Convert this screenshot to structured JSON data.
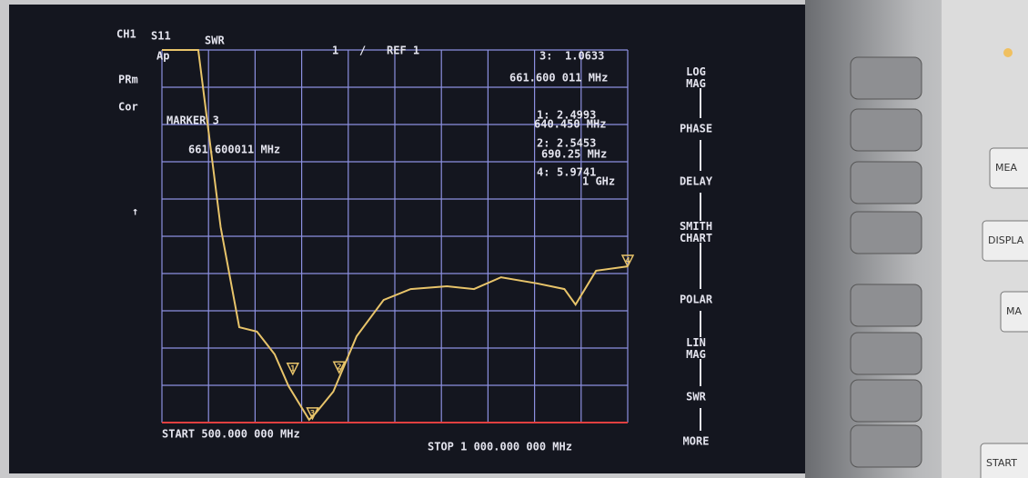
{
  "chart_data": {
    "type": "line",
    "channel": "CH1",
    "parameter": "S11",
    "format": "SWR",
    "scale_ref": [
      "1",
      "/",
      "REF 1"
    ],
    "status": [
      "Ap",
      "PRm",
      "Cor",
      "↑"
    ],
    "xlim": [
      500,
      1000
    ],
    "ylim": [
      1,
      13
    ],
    "x": [
      500,
      535,
      539,
      563,
      583,
      602,
      621,
      636,
      658,
      665,
      684,
      709,
      738,
      767,
      806,
      835,
      864,
      903,
      932,
      944,
      966,
      1000
    ],
    "series": [
      {
        "color": "#e8c46a",
        "values": [
          13,
          13,
          13,
          7.3,
          4.07,
          3.93,
          3.2,
          2.17,
          1.09,
          1.3,
          2.0,
          3.78,
          4.95,
          5.3,
          5.39,
          5.3,
          5.68,
          5.48,
          5.3,
          4.8,
          5.89,
          6.03
        ]
      }
    ],
    "active_marker": {
      "title": "MARKER 3",
      "freq_label": "661.600011 MHz"
    },
    "markers": [
      {
        "label": "3:",
        "symbol": "3",
        "value": 1.0633,
        "freq": 661.600011,
        "freq_label": "661.600 011 MHz"
      },
      {
        "label": "1:",
        "symbol": "1",
        "value": 2.4993,
        "freq": 640.45,
        "freq_label": "640.450 MHz"
      },
      {
        "label": "2:",
        "symbol": "2",
        "value": 2.5453,
        "freq": 690.25,
        "freq_label": "690.25 MHz"
      },
      {
        "label": "4:",
        "symbol": "4",
        "value": 5.9741,
        "freq": 1000,
        "freq_label": "1 GHz"
      }
    ],
    "start_label": "START  500.000 000 MHz",
    "stop_label": "STOP 1 000.000 000 MHz"
  },
  "softkeys": [
    "LOG MAG",
    "PHASE",
    "DELAY",
    "SMITH CHART",
    "POLAR",
    "LIN MAG",
    "SWR",
    "MORE"
  ],
  "panel_keys": [
    "MEA",
    "DISPLA",
    "MA",
    "START"
  ]
}
